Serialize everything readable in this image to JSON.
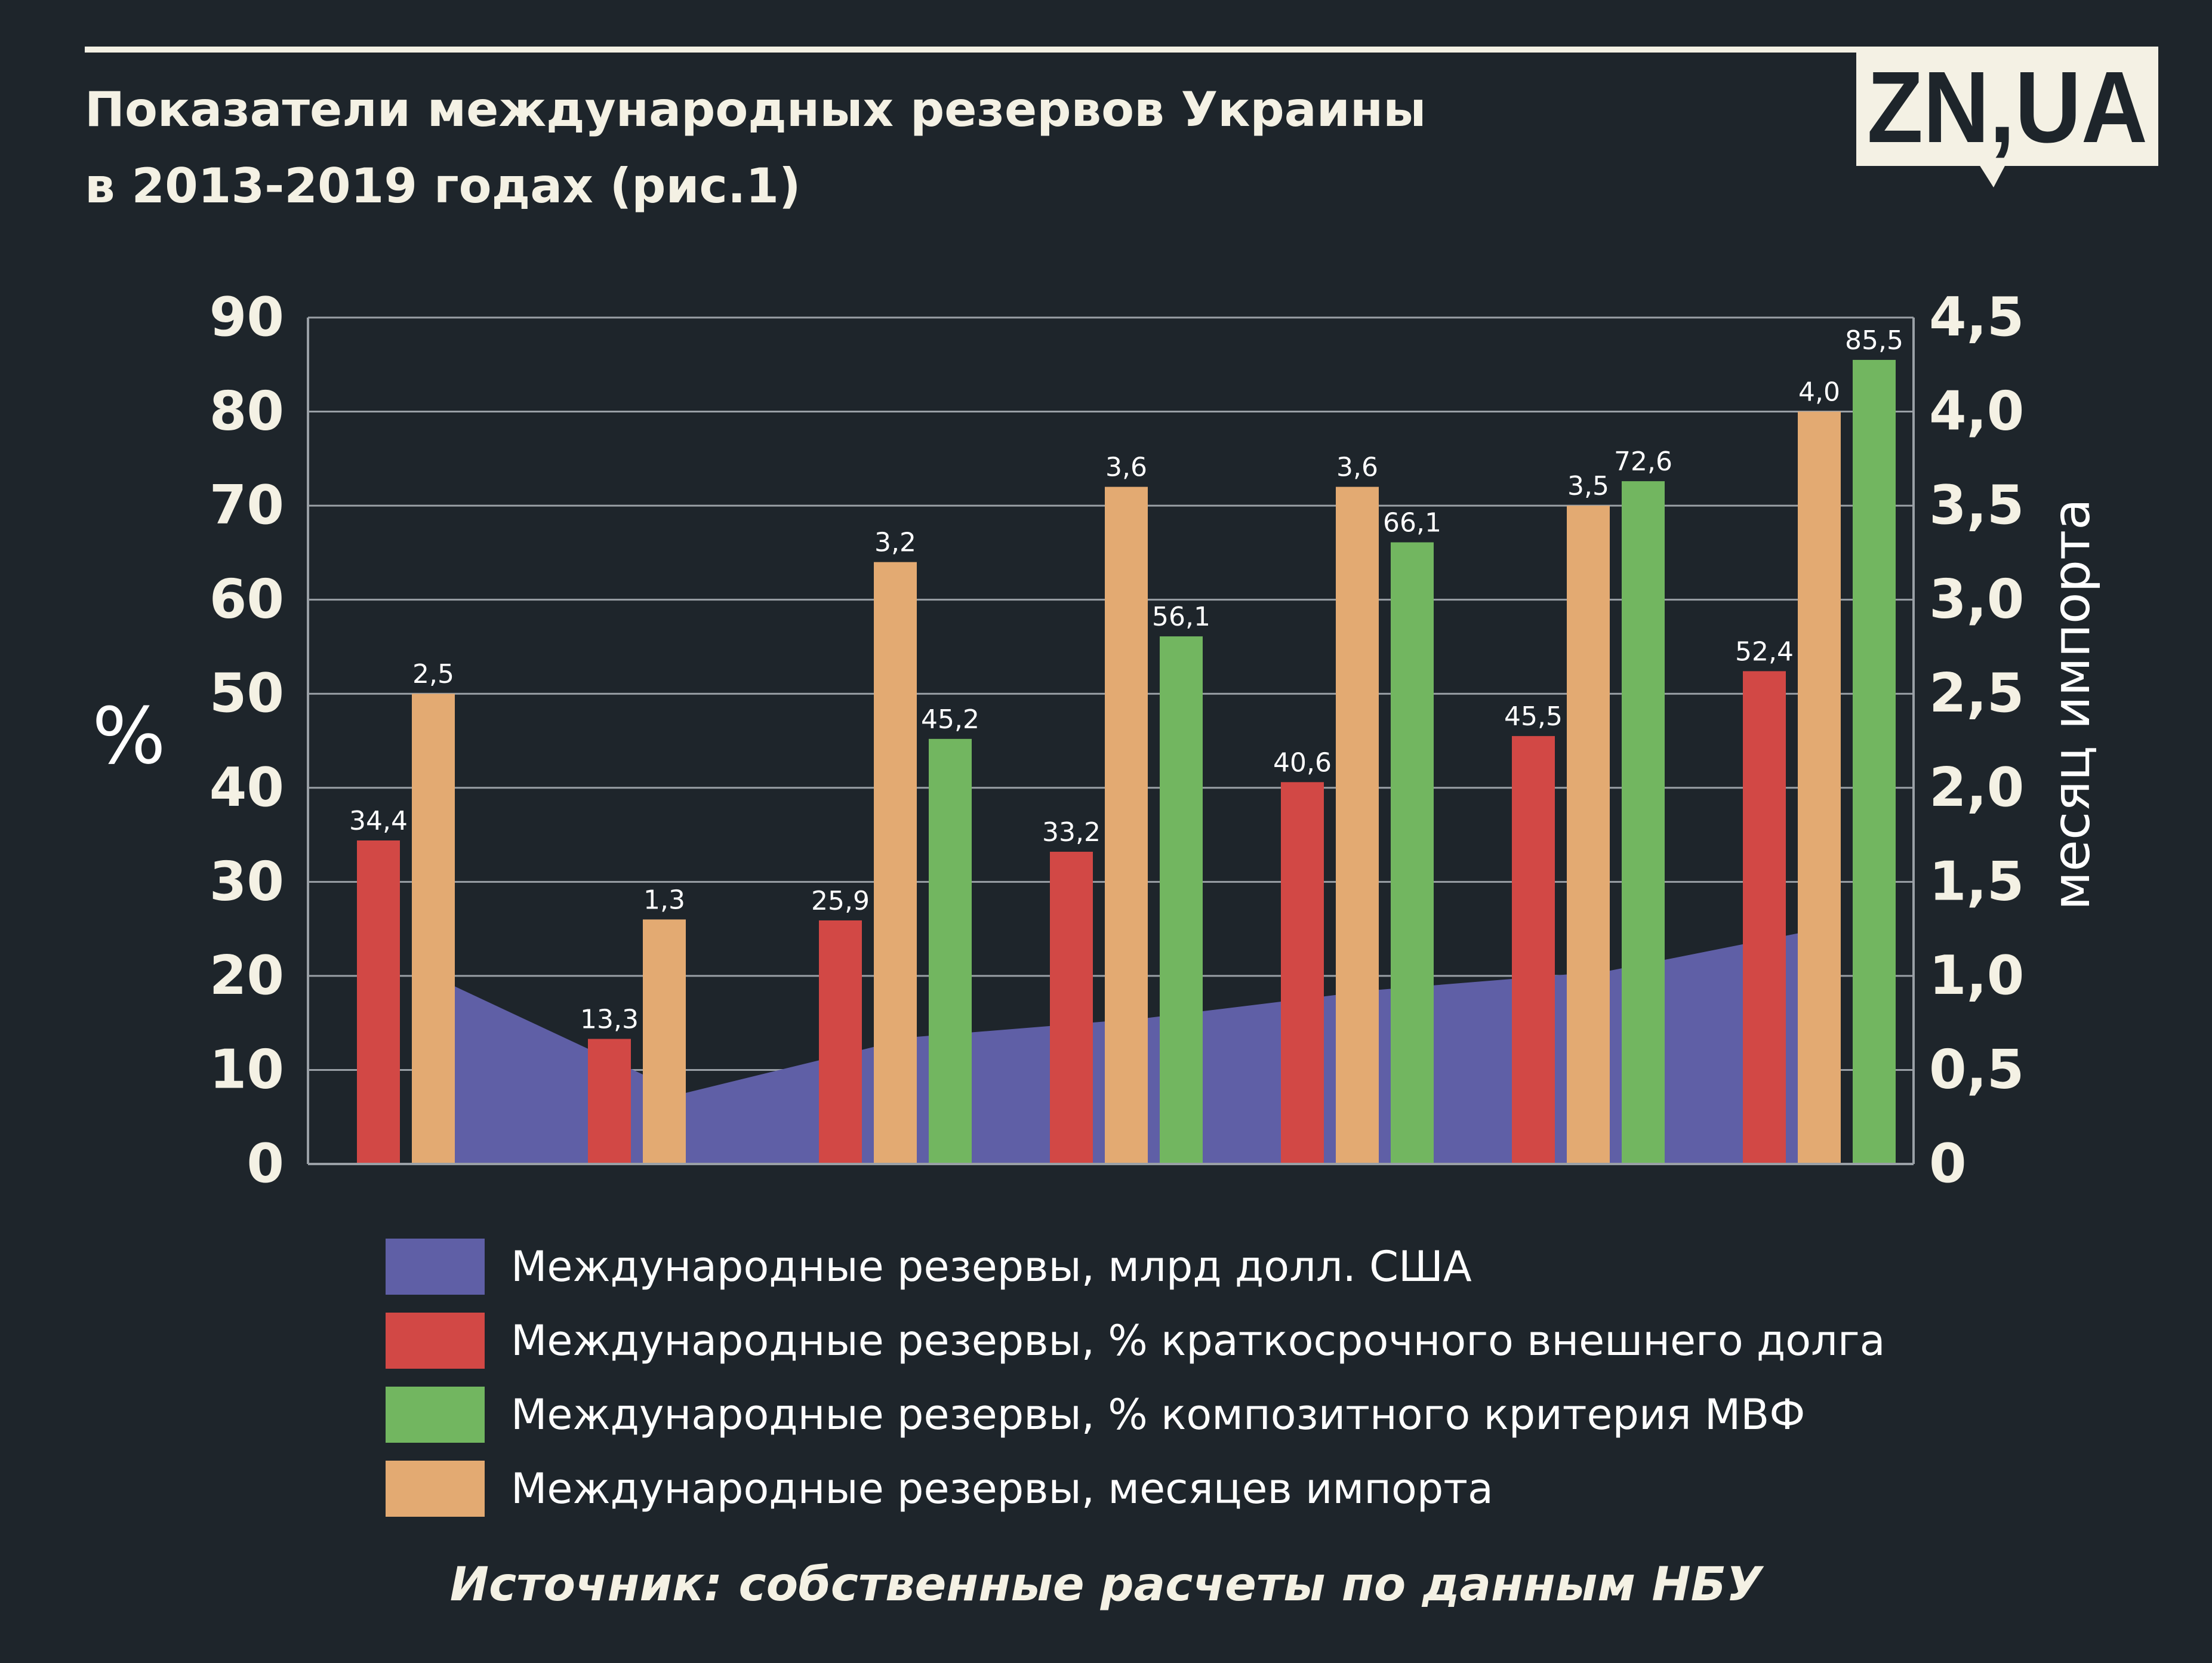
{
  "header": {
    "title_line1": "Показатели международных резервов Украины",
    "title_line2": "в 2013-2019 годах (рис.1)",
    "logo_text": "ZN,UA"
  },
  "colors": {
    "background": "#1e252b",
    "reserves_usd": "#5f5fa6",
    "short_term_debt": "#d24845",
    "imf_criterion": "#72b660",
    "import_months": "#e3aa72",
    "text": "#ffffff",
    "cream": "#f4f1e4"
  },
  "chart_data": {
    "type": "bar",
    "y_left": {
      "label": "%",
      "range": [
        0,
        90
      ],
      "ticks": [
        "0",
        "10",
        "20",
        "30",
        "40",
        "50",
        "60",
        "70",
        "80",
        "90"
      ]
    },
    "y_right": {
      "label": "месяц импорта",
      "range": [
        0,
        4.5
      ],
      "ticks": [
        "0",
        "0,5",
        "1,0",
        "1,5",
        "2,0",
        "2,5",
        "3,0",
        "3,5",
        "4,0",
        "4,5"
      ]
    },
    "grid": true,
    "legend_position": "bottom",
    "groups": 7,
    "series": [
      {
        "key": "reserves_usd",
        "name": "Международные резервы, млрд долл. США",
        "kind": "area",
        "axis": "left",
        "values": [
          19,
          7.5,
          13.5,
          15.5,
          18.5,
          20.5,
          25
        ]
      },
      {
        "key": "short_term_debt",
        "name": "Международные резервы, % краткосрочного внешнего долга",
        "kind": "bar",
        "axis": "left",
        "values": [
          34.4,
          13.3,
          25.9,
          33.2,
          40.6,
          45.5,
          52.4
        ],
        "labels": [
          "34,4",
          "13,3",
          "25,9",
          "33,2",
          "40,6",
          "45,5",
          "52,4"
        ]
      },
      {
        "key": "import_months",
        "name": "Международные резервы, месяцев импорта",
        "kind": "bar",
        "axis": "right",
        "values": [
          2.5,
          1.3,
          3.2,
          3.6,
          3.6,
          3.5,
          4.0
        ],
        "labels": [
          "2,5",
          "1,3",
          "3,2",
          "3,6",
          "3,6",
          "3,5",
          "4,0"
        ]
      },
      {
        "key": "imf_criterion",
        "name": "Международные резервы, % композитного критерия МВФ",
        "kind": "bar",
        "axis": "left",
        "values": [
          null,
          null,
          45.2,
          56.1,
          66.1,
          72.6,
          85.5
        ],
        "labels": [
          "",
          "",
          "45,2",
          "56,1",
          "66,1",
          "72,6",
          "85,5"
        ]
      }
    ]
  },
  "legend": {
    "items": [
      {
        "key": "reserves_usd",
        "label": "Международные резервы, млрд долл. США"
      },
      {
        "key": "short_term_debt",
        "label": "Международные резервы, % краткосрочного внешнего долга"
      },
      {
        "key": "imf_criterion",
        "label": "Международные резервы, % композитного критерия МВФ"
      },
      {
        "key": "import_months",
        "label": "Международные резервы, месяцев импорта"
      }
    ]
  },
  "footer": {
    "source": "Источник: собственные расчеты по данным НБУ"
  }
}
